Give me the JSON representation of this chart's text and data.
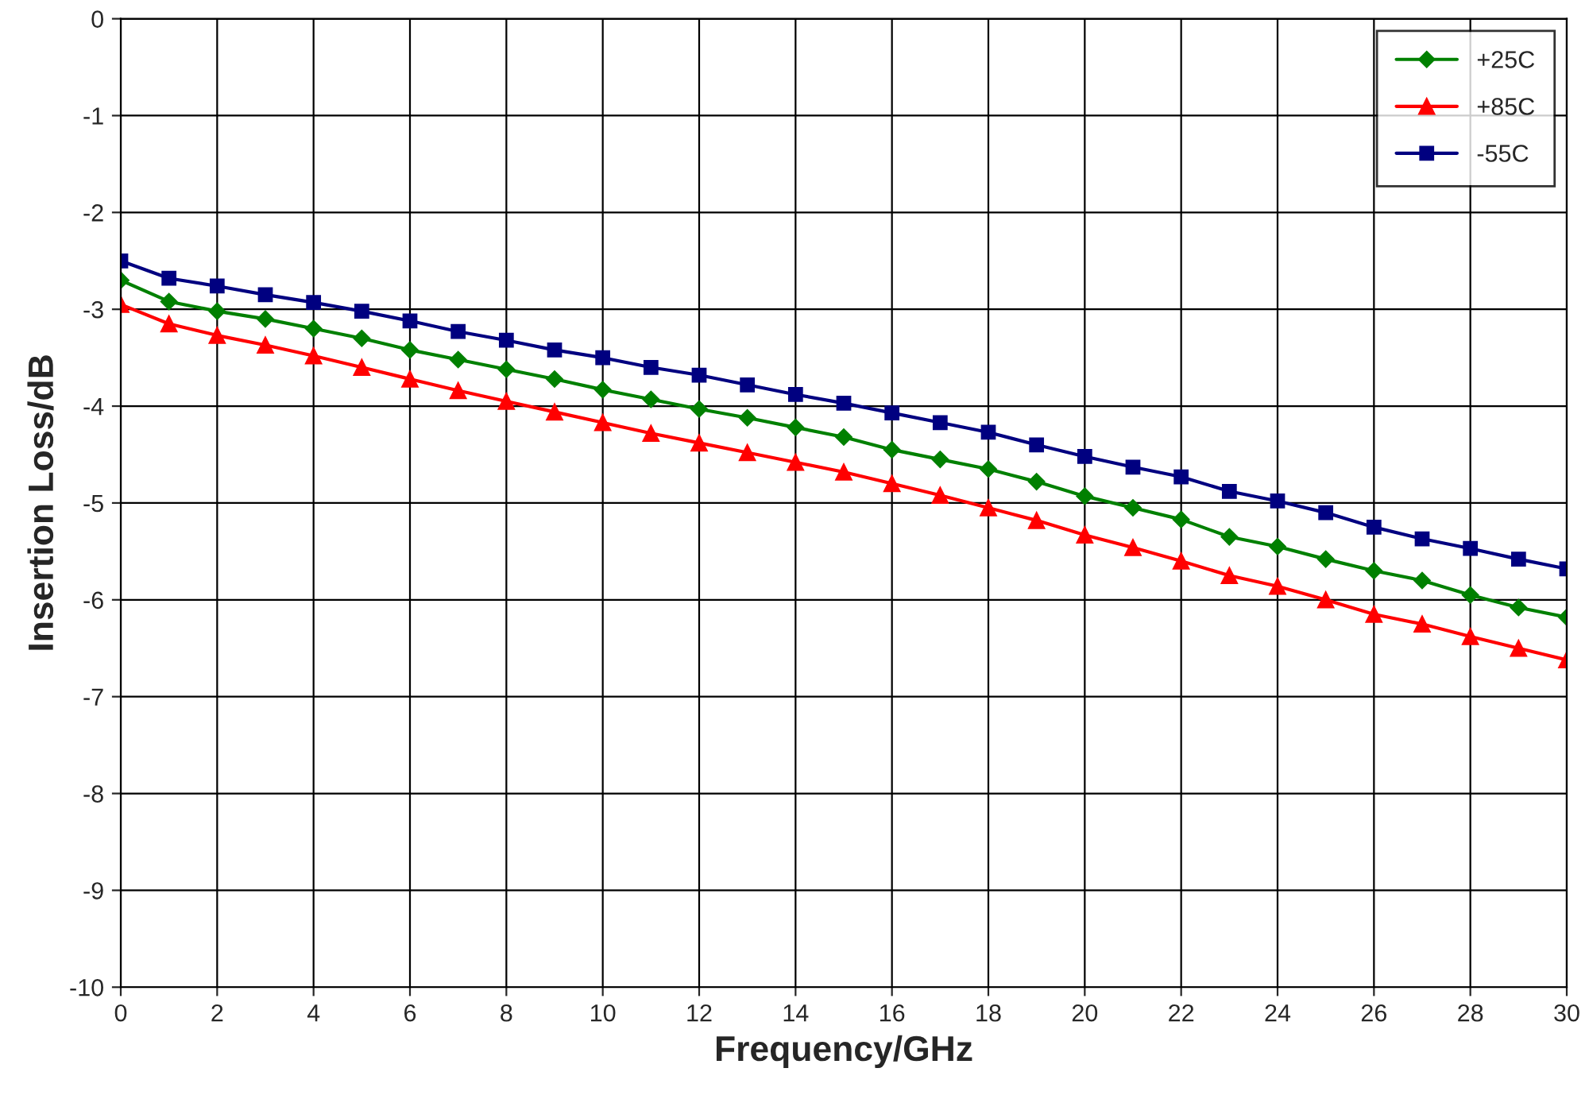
{
  "chart_data": {
    "type": "line",
    "xlabel": "Frequency/GHz",
    "ylabel": "Insertion Loss/dB",
    "x": [
      0,
      1,
      2,
      3,
      4,
      5,
      6,
      7,
      8,
      9,
      10,
      11,
      12,
      13,
      14,
      15,
      16,
      17,
      18,
      19,
      20,
      21,
      22,
      23,
      24,
      25,
      26,
      27,
      28,
      29,
      30
    ],
    "series": [
      {
        "name": "+25C",
        "color": "#008000",
        "marker": "diamond",
        "values": [
          -2.7,
          -2.92,
          -3.02,
          -3.1,
          -3.2,
          -3.3,
          -3.42,
          -3.52,
          -3.62,
          -3.72,
          -3.83,
          -3.93,
          -4.03,
          -4.12,
          -4.22,
          -4.32,
          -4.45,
          -4.55,
          -4.65,
          -4.78,
          -4.93,
          -5.05,
          -5.17,
          -5.35,
          -5.45,
          -5.58,
          -5.7,
          -5.8,
          -5.95,
          -6.08,
          -6.18
        ]
      },
      {
        "name": "+85C",
        "color": "#ff0000",
        "marker": "triangle",
        "values": [
          -2.95,
          -3.15,
          -3.27,
          -3.37,
          -3.48,
          -3.6,
          -3.72,
          -3.84,
          -3.95,
          -4.06,
          -4.17,
          -4.28,
          -4.38,
          -4.48,
          -4.58,
          -4.68,
          -4.8,
          -4.92,
          -5.05,
          -5.18,
          -5.33,
          -5.46,
          -5.6,
          -5.75,
          -5.86,
          -6.0,
          -6.15,
          -6.25,
          -6.38,
          -6.5,
          -6.62
        ]
      },
      {
        "name": "-55C",
        "color": "#000080",
        "marker": "square",
        "values": [
          -2.5,
          -2.68,
          -2.76,
          -2.85,
          -2.93,
          -3.02,
          -3.12,
          -3.23,
          -3.32,
          -3.42,
          -3.5,
          -3.6,
          -3.68,
          -3.78,
          -3.88,
          -3.97,
          -4.07,
          -4.17,
          -4.27,
          -4.4,
          -4.52,
          -4.63,
          -4.73,
          -4.88,
          -4.98,
          -5.1,
          -5.25,
          -5.37,
          -5.47,
          -5.58,
          -5.68
        ]
      }
    ],
    "xlim": [
      0,
      30
    ],
    "xticks": [
      0,
      2,
      4,
      6,
      8,
      10,
      12,
      14,
      16,
      18,
      20,
      22,
      24,
      26,
      28,
      30
    ],
    "ylim": [
      -10,
      0
    ],
    "yticks": [
      -10,
      -9,
      -8,
      -7,
      -6,
      -5,
      -4,
      -3,
      -2,
      -1,
      0
    ],
    "grid": true,
    "legend": "top right",
    "line_style": "solid"
  }
}
